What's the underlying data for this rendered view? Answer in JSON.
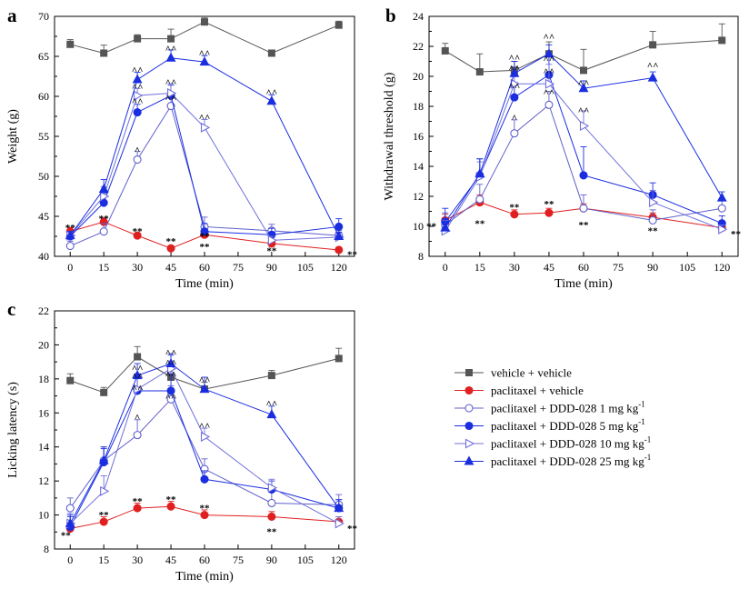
{
  "chart_data": [
    {
      "type": "line",
      "panel_label": "a",
      "xlabel": "Time (min)",
      "ylabel": "Weight (g)",
      "ylim": [
        40,
        70
      ],
      "yticks": [
        40,
        45,
        50,
        55,
        60,
        65,
        70
      ],
      "xlim": [
        -7,
        127
      ],
      "xticks": [
        0,
        15,
        30,
        45,
        60,
        75,
        90,
        105,
        120
      ],
      "x": [
        0,
        15,
        30,
        45,
        60,
        90,
        120
      ],
      "series": [
        {
          "name": "vehicle + vehicle",
          "values": [
            66.5,
            65.4,
            67.2,
            67.2,
            69.3,
            65.4,
            68.9
          ],
          "errors": [
            0.6,
            1.0,
            0.5,
            1.2,
            0.5,
            0.3,
            0.5
          ],
          "color": "#555555",
          "marker": "square",
          "filled": true
        },
        {
          "name": "paclitaxel + vehicle",
          "values": [
            43.1,
            44.3,
            42.6,
            41.0,
            42.7,
            41.6,
            40.8
          ],
          "errors": [
            0.5,
            0.5,
            0.3,
            0.3,
            0.4,
            0.3,
            0.3
          ],
          "color": "#e02020",
          "marker": "circle",
          "filled": true
        },
        {
          "name": "paclitaxel + DDD-028 1 mg kg-1",
          "values": [
            41.3,
            43.1,
            52.1,
            58.8,
            43.7,
            43.2,
            42.6
          ],
          "errors": [
            0.6,
            1.0,
            1.0,
            1.0,
            1.2,
            0.8,
            0.6
          ],
          "color": "#6060cc",
          "marker": "circle",
          "filled": false
        },
        {
          "name": "paclitaxel + DDD-028 5 mg kg-1",
          "values": [
            42.5,
            46.7,
            58.0,
            60.1,
            43.1,
            42.7,
            43.7
          ],
          "errors": [
            0.6,
            1.2,
            1.0,
            1.3,
            1.0,
            0.8,
            1.0
          ],
          "color": "#1a2ee0",
          "marker": "circle",
          "filled": true
        },
        {
          "name": "paclitaxel + DDD-028 10 mg kg-1",
          "values": [
            42.6,
            47.5,
            60.1,
            60.4,
            56.1,
            42.0,
            42.4
          ],
          "errors": [
            0.5,
            1.2,
            0.9,
            1.2,
            1.0,
            0.5,
            0.5
          ],
          "color": "#7070dd",
          "marker": "triangle-right",
          "filled": false
        },
        {
          "name": "paclitaxel + DDD-028 25 mg kg-1",
          "values": [
            42.6,
            48.4,
            62.1,
            64.8,
            64.3,
            59.4,
            42.5
          ],
          "errors": [
            0.5,
            1.2,
            0.9,
            1.0,
            0.8,
            0.8,
            0.5
          ],
          "color": "#1a2ee0",
          "marker": "triangle-up",
          "filled": true
        }
      ],
      "annotations": [
        {
          "text": "**",
          "x": 0,
          "y": 44.0
        },
        {
          "text": "**",
          "x": 15,
          "y": 45.1
        },
        {
          "text": "**",
          "x": 30,
          "y": 43.5
        },
        {
          "text": "**",
          "x": 45,
          "y": 42.3
        },
        {
          "text": "**",
          "x": 60,
          "y": 42.9
        },
        {
          "text": "**",
          "x": 60,
          "y": 41.6
        },
        {
          "text": "**",
          "x": 90,
          "y": 41.1
        },
        {
          "text": "**",
          "x": 126,
          "y": 40.6
        },
        {
          "text": "^",
          "x": 30,
          "y": 53.4
        },
        {
          "text": "^^",
          "x": 30,
          "y": 59.5
        },
        {
          "text": "^^",
          "x": 30,
          "y": 61.3
        },
        {
          "text": "^^",
          "x": 30,
          "y": 63.4
        },
        {
          "text": "^^",
          "x": 45,
          "y": 59.9
        },
        {
          "text": "^^",
          "x": 45,
          "y": 61.9
        },
        {
          "text": "^^",
          "x": 45,
          "y": 66.1
        },
        {
          "text": "^^",
          "x": 60,
          "y": 57.5
        },
        {
          "text": "^^",
          "x": 60,
          "y": 65.5
        },
        {
          "text": "^^",
          "x": 90,
          "y": 60.6
        }
      ]
    },
    {
      "type": "line",
      "panel_label": "b",
      "xlabel": "Time (min)",
      "ylabel": "Withdrawal threshold (g)",
      "ylim": [
        8,
        24
      ],
      "yticks": [
        8,
        10,
        12,
        14,
        16,
        18,
        20,
        22,
        24
      ],
      "xlim": [
        -7,
        127
      ],
      "xticks": [
        0,
        15,
        30,
        45,
        60,
        75,
        90,
        105,
        120
      ],
      "x": [
        0,
        15,
        30,
        45,
        60,
        90,
        120
      ],
      "series": [
        {
          "name": "vehicle + vehicle",
          "values": [
            21.7,
            20.3,
            20.4,
            21.5,
            20.4,
            22.1,
            22.4
          ],
          "errors": [
            0.5,
            1.2,
            0.6,
            0.8,
            1.4,
            0.9,
            1.1
          ],
          "color": "#555555",
          "marker": "square",
          "filled": true
        },
        {
          "name": "paclitaxel + vehicle",
          "values": [
            10.4,
            11.6,
            10.8,
            10.9,
            11.2,
            10.6,
            9.9
          ],
          "errors": [
            0.4,
            0.5,
            0.3,
            0.3,
            0.3,
            0.3,
            0.3
          ],
          "color": "#e02020",
          "marker": "circle",
          "filled": true
        },
        {
          "name": "paclitaxel + DDD-028 1 mg kg-1",
          "values": [
            10.1,
            11.8,
            16.2,
            18.1,
            11.2,
            10.4,
            11.2
          ],
          "errors": [
            0.8,
            1.0,
            0.9,
            0.9,
            0.9,
            0.7,
            0.6
          ],
          "color": "#6060cc",
          "marker": "circle",
          "filled": false
        },
        {
          "name": "paclitaxel + DDD-028 5 mg kg-1",
          "values": [
            10.3,
            13.4,
            18.6,
            20.1,
            13.4,
            12.1,
            10.2
          ],
          "errors": [
            0.9,
            1.1,
            1.0,
            1.3,
            1.9,
            0.8,
            0.5
          ],
          "color": "#1a2ee0",
          "marker": "circle",
          "filled": true
        },
        {
          "name": "paclitaxel + DDD-028 10 mg kg-1",
          "values": [
            9.7,
            13.3,
            19.5,
            19.5,
            16.7,
            11.6,
            9.8
          ],
          "errors": [
            0.7,
            1.0,
            1.0,
            1.3,
            1.0,
            0.8,
            0.3
          ],
          "color": "#7070dd",
          "marker": "triangle-right",
          "filled": false
        },
        {
          "name": "paclitaxel + DDD-028 25 mg kg-1",
          "values": [
            9.9,
            13.5,
            20.2,
            21.5,
            19.2,
            19.9,
            11.9
          ],
          "errors": [
            0.6,
            1.0,
            0.8,
            0.6,
            0.5,
            0.4,
            0.4
          ],
          "color": "#1a2ee0",
          "marker": "triangle-up",
          "filled": true
        }
      ],
      "annotations": [
        {
          "text": "**",
          "x": -6,
          "y": 10.2
        },
        {
          "text": "**",
          "x": 15,
          "y": 10.4
        },
        {
          "text": "**",
          "x": 30,
          "y": 11.5
        },
        {
          "text": "**",
          "x": 45,
          "y": 11.7
        },
        {
          "text": "**",
          "x": 60,
          "y": 10.3
        },
        {
          "text": "**",
          "x": 90,
          "y": 9.9
        },
        {
          "text": "**",
          "x": 126,
          "y": 9.7
        },
        {
          "text": "^",
          "x": 30,
          "y": 17.3
        },
        {
          "text": "^^",
          "x": 30,
          "y": 19.4
        },
        {
          "text": "^^",
          "x": 30,
          "y": 20.6
        },
        {
          "text": "^^",
          "x": 30,
          "y": 21.3
        },
        {
          "text": "^^",
          "x": 45,
          "y": 19.0
        },
        {
          "text": "^^",
          "x": 45,
          "y": 20.4
        },
        {
          "text": "^^",
          "x": 45,
          "y": 21.2
        },
        {
          "text": "^^",
          "x": 45,
          "y": 22.7
        },
        {
          "text": "^^",
          "x": 60,
          "y": 17.8
        },
        {
          "text": "^^",
          "x": 60,
          "y": 19.6
        },
        {
          "text": "^^",
          "x": 90,
          "y": 20.8
        }
      ]
    },
    {
      "type": "line",
      "panel_label": "c",
      "xlabel": "Time (min)",
      "ylabel": "Licking latency (s)",
      "ylim": [
        8,
        22
      ],
      "yticks": [
        8,
        10,
        12,
        14,
        16,
        18,
        20,
        22
      ],
      "xlim": [
        -7,
        127
      ],
      "xticks": [
        0,
        15,
        30,
        45,
        60,
        75,
        90,
        105,
        120
      ],
      "x": [
        0,
        15,
        30,
        45,
        60,
        90,
        120
      ],
      "series": [
        {
          "name": "vehicle + vehicle",
          "values": [
            17.9,
            17.2,
            19.3,
            18.1,
            17.4,
            18.2,
            19.2
          ],
          "errors": [
            0.4,
            0.3,
            0.6,
            0.5,
            0.4,
            0.3,
            0.6
          ],
          "color": "#555555",
          "marker": "square",
          "filled": true
        },
        {
          "name": "paclitaxel + vehicle",
          "values": [
            9.2,
            9.6,
            10.4,
            10.5,
            10.0,
            9.9,
            9.6
          ],
          "errors": [
            0.3,
            0.3,
            0.3,
            0.3,
            0.3,
            0.3,
            0.3
          ],
          "color": "#e02020",
          "marker": "circle",
          "filled": true
        },
        {
          "name": "paclitaxel + DDD-028 1 mg kg-1",
          "values": [
            10.4,
            13.2,
            14.7,
            16.8,
            12.7,
            10.7,
            10.6
          ],
          "errors": [
            0.6,
            0.8,
            0.9,
            0.8,
            0.6,
            0.7,
            0.6
          ],
          "color": "#6060cc",
          "marker": "circle",
          "filled": false
        },
        {
          "name": "paclitaxel + DDD-028 5 mg kg-1",
          "values": [
            9.3,
            13.1,
            17.3,
            17.3,
            12.1,
            11.5,
            10.4
          ],
          "errors": [
            0.6,
            0.8,
            1.0,
            1.0,
            0.5,
            0.5,
            0.5
          ],
          "color": "#1a2ee0",
          "marker": "circle",
          "filled": true
        },
        {
          "name": "paclitaxel + DDD-028 10 mg kg-1",
          "values": [
            9.5,
            11.4,
            17.4,
            18.6,
            14.6,
            11.6,
            9.5
          ],
          "errors": [
            0.6,
            0.9,
            0.8,
            0.9,
            0.5,
            0.5,
            0.4
          ],
          "color": "#7070dd",
          "marker": "triangle-right",
          "filled": false
        },
        {
          "name": "paclitaxel + DDD-028 25 mg kg-1",
          "values": [
            9.5,
            13.2,
            18.2,
            18.9,
            17.4,
            15.9,
            10.4
          ],
          "errors": [
            0.5,
            0.8,
            0.7,
            0.5,
            0.7,
            0.5,
            0.5
          ],
          "color": "#1a2ee0",
          "marker": "triangle-up",
          "filled": true
        }
      ],
      "annotations": [
        {
          "text": "**",
          "x": -2,
          "y": 9.0
        },
        {
          "text": "**",
          "x": 15,
          "y": 10.2
        },
        {
          "text": "**",
          "x": 30,
          "y": 11.0
        },
        {
          "text": "**",
          "x": 45,
          "y": 11.1
        },
        {
          "text": "**",
          "x": 60,
          "y": 10.6
        },
        {
          "text": "**",
          "x": 90,
          "y": 9.2
        },
        {
          "text": "**",
          "x": 126,
          "y": 9.4
        },
        {
          "text": "^",
          "x": 30,
          "y": 15.8
        },
        {
          "text": "^^",
          "x": 30,
          "y": 17.5
        },
        {
          "text": "^^",
          "x": 30,
          "y": 18.2
        },
        {
          "text": "^^",
          "x": 30,
          "y": 18.7
        },
        {
          "text": "^^",
          "x": 45,
          "y": 17.0
        },
        {
          "text": "^^",
          "x": 45,
          "y": 18.3
        },
        {
          "text": "^^",
          "x": 45,
          "y": 19.0
        },
        {
          "text": "^^",
          "x": 45,
          "y": 19.6
        },
        {
          "text": "^^",
          "x": 60,
          "y": 15.3
        },
        {
          "text": "^^",
          "x": 60,
          "y": 18.0
        },
        {
          "text": "^^",
          "x": 90,
          "y": 16.6
        }
      ]
    }
  ],
  "legend": {
    "placement": "lower-right",
    "entries": [
      {
        "prefix": "vehicle + vehicle",
        "sup": ""
      },
      {
        "prefix": "paclitaxel + vehicle",
        "sup": ""
      },
      {
        "prefix": "paclitaxel + DDD-028 1 mg kg",
        "sup": "-1"
      },
      {
        "prefix": "paclitaxel + DDD-028 5 mg kg",
        "sup": "-1"
      },
      {
        "prefix": "paclitaxel + DDD-028 10 mg kg",
        "sup": "-1"
      },
      {
        "prefix": "paclitaxel + DDD-028 25 mg kg",
        "sup": "-1"
      }
    ]
  }
}
